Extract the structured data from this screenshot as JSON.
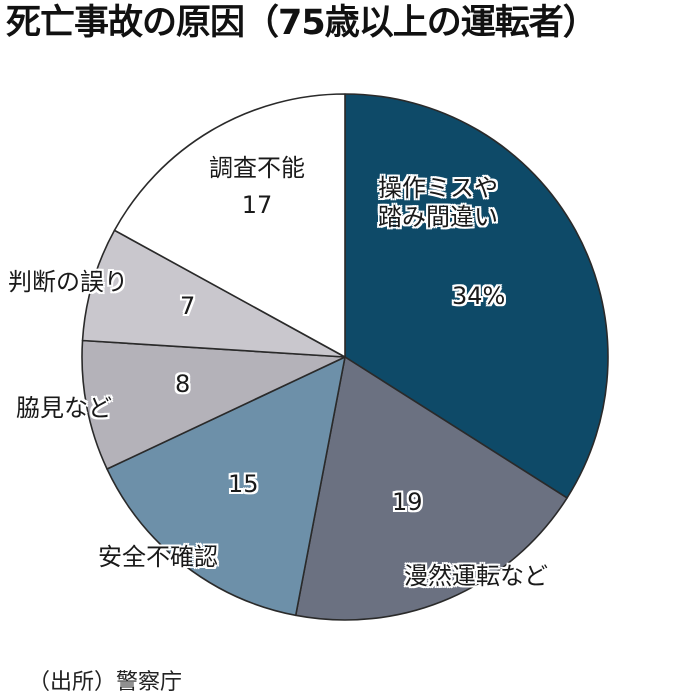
{
  "chart_data": {
    "type": "pie",
    "title": "死亡事故の原因（75歳以上の運転者）",
    "unit": "%",
    "start_angle": "12 o'clock, clockwise",
    "categories": [
      "操作ミスや踏み間違い",
      "漫然運転など",
      "安全不確認",
      "脇見など",
      "判断の誤り",
      "調査不能"
    ],
    "values": [
      34,
      19,
      15,
      8,
      7,
      17
    ],
    "value_labels": [
      "34%",
      "19",
      "15",
      "8",
      "7",
      "17"
    ],
    "colors": [
      "#0e4a68",
      "#6b7181",
      "#6d90a9",
      "#b4b2b9",
      "#c9c7cd",
      "#ffffff"
    ],
    "source": "（出所）警察庁"
  },
  "title": "死亡事故の原因（75歳以上の運転者）",
  "labels": {
    "s0_line1": "操作ミスや",
    "s0_line2": "踏み間違い",
    "s0_value": "34%",
    "s1_name": "漫然運転など",
    "s1_value": "19",
    "s2_name": "安全不確認",
    "s2_value": "15",
    "s3_name": "脇見など",
    "s3_value": "8",
    "s4_name": "判断の誤り",
    "s4_value": "7",
    "s5_name": "調査不能",
    "s5_value": "17"
  },
  "source": "（出所）警察庁"
}
